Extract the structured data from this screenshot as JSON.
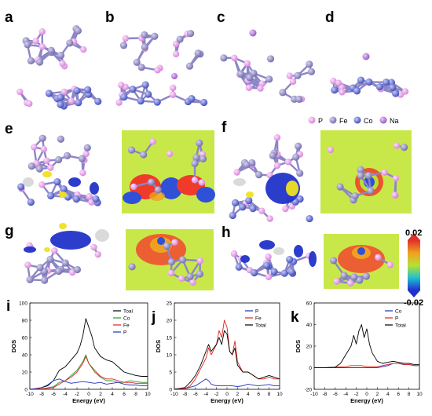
{
  "panel_labels": [
    "a",
    "b",
    "c",
    "d",
    "e",
    "f",
    "g",
    "h",
    "i",
    "j",
    "k"
  ],
  "element_legend": [
    {
      "symbol": "P",
      "color": "#e49be6"
    },
    {
      "symbol": "Fe",
      "color": "#8a84c4"
    },
    {
      "symbol": "Co",
      "color": "#5b67d6"
    },
    {
      "symbol": "Na",
      "color": "#b46fd6"
    }
  ],
  "colorbar": {
    "max": "0.02",
    "min": "-0.02"
  },
  "chart_data": [
    {
      "type": "line",
      "panel": "i",
      "xlabel": "Energy (eV)",
      "ylabel": "DOS",
      "xlim": [
        -10,
        10
      ],
      "ylim": [
        0,
        100
      ],
      "xticks": [
        -10,
        -8,
        -6,
        -4,
        -2,
        0,
        2,
        4,
        6,
        8,
        10
      ],
      "yticks": [
        0,
        20,
        40,
        60,
        80,
        100
      ],
      "legend_position": "top-right",
      "series": [
        {
          "name": "Toal",
          "color": "#000000",
          "points": [
            [
              -10,
              0
            ],
            [
              -9,
              0.5
            ],
            [
              -8,
              2
            ],
            [
              -7,
              4
            ],
            [
              -6,
              10
            ],
            [
              -5,
              22
            ],
            [
              -4,
              26
            ],
            [
              -3,
              34
            ],
            [
              -2,
              42
            ],
            [
              -1.5,
              50
            ],
            [
              -1,
              62
            ],
            [
              -0.5,
              82
            ],
            [
              0,
              72
            ],
            [
              0.5,
              62
            ],
            [
              1,
              48
            ],
            [
              2,
              38
            ],
            [
              3,
              34
            ],
            [
              4,
              32
            ],
            [
              5,
              26
            ],
            [
              6,
              20
            ],
            [
              7,
              18
            ],
            [
              8,
              16
            ],
            [
              9,
              15
            ],
            [
              10,
              15
            ]
          ]
        },
        {
          "name": "Co",
          "color": "#2a9a2a",
          "points": [
            [
              -10,
              0
            ],
            [
              -8,
              0.5
            ],
            [
              -6,
              3
            ],
            [
              -5,
              8
            ],
            [
              -4,
              10
            ],
            [
              -3,
              16
            ],
            [
              -2,
              22
            ],
            [
              -1,
              32
            ],
            [
              -0.5,
              40
            ],
            [
              0,
              30
            ],
            [
              1,
              20
            ],
            [
              2,
              14
            ],
            [
              3,
              10
            ],
            [
              4,
              10
            ],
            [
              5,
              8
            ],
            [
              6,
              8
            ],
            [
              7,
              10
            ],
            [
              8,
              9
            ],
            [
              9,
              8
            ],
            [
              10,
              8
            ]
          ]
        },
        {
          "name": "Fe",
          "color": "#e02020",
          "points": [
            [
              -10,
              0
            ],
            [
              -8,
              0.5
            ],
            [
              -6,
              2
            ],
            [
              -5,
              6
            ],
            [
              -4,
              10
            ],
            [
              -3,
              14
            ],
            [
              -2,
              20
            ],
            [
              -1,
              30
            ],
            [
              -0.5,
              38
            ],
            [
              0,
              30
            ],
            [
              1,
              22
            ],
            [
              2,
              15
            ],
            [
              3,
              12
            ],
            [
              4,
              12
            ],
            [
              5,
              10
            ],
            [
              6,
              8
            ],
            [
              7,
              8
            ],
            [
              8,
              7
            ],
            [
              9,
              7
            ],
            [
              10,
              7
            ]
          ]
        },
        {
          "name": "P",
          "color": "#2030c0",
          "points": [
            [
              -10,
              0
            ],
            [
              -9,
              1
            ],
            [
              -8,
              2
            ],
            [
              -7,
              5
            ],
            [
              -6,
              10
            ],
            [
              -5,
              12
            ],
            [
              -4,
              9
            ],
            [
              -3,
              7
            ],
            [
              -2,
              8
            ],
            [
              -1,
              9
            ],
            [
              0,
              8
            ],
            [
              1,
              7
            ],
            [
              2,
              8
            ],
            [
              3,
              6
            ],
            [
              4,
              7
            ],
            [
              5,
              8
            ],
            [
              6,
              6
            ],
            [
              7,
              5
            ],
            [
              8,
              5
            ],
            [
              9,
              4
            ],
            [
              10,
              4
            ]
          ]
        }
      ]
    },
    {
      "type": "line",
      "panel": "j",
      "xlabel": "Energy (eV)",
      "ylabel": "DOS",
      "xlim": [
        -10,
        10
      ],
      "ylim": [
        0,
        25
      ],
      "xticks": [
        -10,
        -8,
        -6,
        -4,
        -2,
        0,
        2,
        4,
        6,
        8,
        10
      ],
      "yticks": [
        0,
        5,
        10,
        15,
        20,
        25
      ],
      "legend_position": "top-right",
      "series": [
        {
          "name": "P",
          "color": "#2030c0",
          "points": [
            [
              -10,
              0
            ],
            [
              -8,
              0.2
            ],
            [
              -6,
              1
            ],
            [
              -5,
              2
            ],
            [
              -4,
              3
            ],
            [
              -3.5,
              2.5
            ],
            [
              -3,
              1.5
            ],
            [
              -2,
              1
            ],
            [
              -1,
              1
            ],
            [
              0,
              1
            ],
            [
              1,
              1
            ],
            [
              2,
              0.8
            ],
            [
              3,
              1
            ],
            [
              4,
              1.5
            ],
            [
              5,
              1.2
            ],
            [
              6,
              1
            ],
            [
              7,
              1.2
            ],
            [
              8,
              1.4
            ],
            [
              9,
              1
            ],
            [
              10,
              1
            ]
          ]
        },
        {
          "name": "Fe",
          "color": "#e02020",
          "points": [
            [
              -10,
              0
            ],
            [
              -8,
              0.2
            ],
            [
              -7,
              1
            ],
            [
              -6,
              3
            ],
            [
              -5,
              6
            ],
            [
              -4,
              9
            ],
            [
              -3.5,
              12
            ],
            [
              -3,
              10
            ],
            [
              -2,
              13
            ],
            [
              -1.5,
              17
            ],
            [
              -1,
              15
            ],
            [
              -0.5,
              20
            ],
            [
              0,
              18
            ],
            [
              0.5,
              11
            ],
            [
              1,
              10
            ],
            [
              1.5,
              14
            ],
            [
              2,
              8
            ],
            [
              3,
              5
            ],
            [
              4,
              5
            ],
            [
              5,
              4
            ],
            [
              6,
              3
            ],
            [
              7,
              3
            ],
            [
              8,
              3.5
            ],
            [
              9,
              3
            ],
            [
              10,
              3
            ]
          ]
        },
        {
          "name": "Total",
          "color": "#000000",
          "points": [
            [
              -10,
              0
            ],
            [
              -8,
              0.5
            ],
            [
              -7,
              2
            ],
            [
              -6,
              4
            ],
            [
              -5,
              7
            ],
            [
              -4,
              11
            ],
            [
              -3.5,
              13
            ],
            [
              -3,
              11
            ],
            [
              -2,
              13
            ],
            [
              -1.5,
              15
            ],
            [
              -1,
              13
            ],
            [
              -0.5,
              17
            ],
            [
              0,
              16
            ],
            [
              0.5,
              11
            ],
            [
              1,
              10
            ],
            [
              1.5,
              12
            ],
            [
              2,
              7
            ],
            [
              3,
              5
            ],
            [
              4,
              5
            ],
            [
              5,
              4
            ],
            [
              6,
              3
            ],
            [
              7,
              3.5
            ],
            [
              8,
              4
            ],
            [
              9,
              3.5
            ],
            [
              10,
              3
            ]
          ]
        }
      ]
    },
    {
      "type": "line",
      "panel": "k",
      "xlabel": "Energy (eV)",
      "ylabel": "DOS",
      "xlim": [
        -10,
        10
      ],
      "ylim": [
        -20,
        60
      ],
      "xticks": [
        -10,
        -8,
        -6,
        -4,
        -2,
        0,
        2,
        4,
        6,
        8,
        10
      ],
      "yticks": [
        -20,
        0,
        20,
        40,
        60
      ],
      "legend_position": "top-right",
      "series": [
        {
          "name": "Co",
          "color": "#2030c0",
          "points": [
            [
              -10,
              0
            ],
            [
              -6,
              0
            ],
            [
              -4,
              0
            ],
            [
              -2,
              0
            ],
            [
              0,
              0
            ],
            [
              2,
              0
            ],
            [
              4,
              2
            ],
            [
              5,
              4
            ],
            [
              6,
              4
            ],
            [
              7,
              3
            ],
            [
              8,
              3
            ],
            [
              9,
              2
            ],
            [
              10,
              2
            ]
          ]
        },
        {
          "name": "P",
          "color": "#e02020",
          "points": [
            [
              -10,
              0
            ],
            [
              -8,
              0
            ],
            [
              -6,
              0.5
            ],
            [
              -4,
              1
            ],
            [
              -3,
              2
            ],
            [
              -2,
              2
            ],
            [
              -1,
              2
            ],
            [
              0,
              1
            ],
            [
              1,
              1
            ],
            [
              2,
              1
            ],
            [
              3,
              2
            ],
            [
              4,
              3
            ],
            [
              5,
              4
            ],
            [
              6,
              4
            ],
            [
              7,
              3
            ],
            [
              8,
              3
            ],
            [
              9,
              2
            ],
            [
              10,
              2
            ]
          ]
        },
        {
          "name": "Total",
          "color": "#000000",
          "points": [
            [
              -10,
              0
            ],
            [
              -8,
              0
            ],
            [
              -6,
              0.5
            ],
            [
              -5,
              4
            ],
            [
              -4,
              12
            ],
            [
              -3,
              20
            ],
            [
              -2.5,
              30
            ],
            [
              -2,
              22
            ],
            [
              -1.5,
              34
            ],
            [
              -1,
              40
            ],
            [
              -0.5,
              28
            ],
            [
              0,
              36
            ],
            [
              0.5,
              22
            ],
            [
              1,
              14
            ],
            [
              2,
              6
            ],
            [
              3,
              4
            ],
            [
              4,
              5
            ],
            [
              5,
              6
            ],
            [
              6,
              5
            ],
            [
              7,
              4
            ],
            [
              8,
              4
            ],
            [
              9,
              3
            ],
            [
              10,
              3
            ]
          ]
        }
      ]
    }
  ]
}
